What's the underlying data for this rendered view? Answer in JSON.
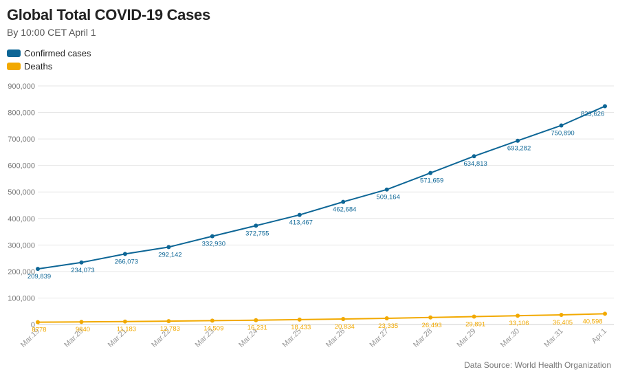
{
  "header": {
    "title": "Global Total COVID-19 Cases",
    "subtitle": "By 10:00 CET April 1"
  },
  "source": "Data Source: World Health Organization",
  "colors": {
    "confirmed": "#0d6696",
    "deaths": "#f2a900",
    "grid": "#e6e6e6"
  },
  "chart_data": {
    "type": "line",
    "title": "Global Total COVID-19 Cases",
    "subtitle": "By 10:00 CET April 1",
    "categories": [
      "Mar.19",
      "Mar.20",
      "Mar.21",
      "Mar.22",
      "Mar.23",
      "Mar.24",
      "Mar.25",
      "Mar.26",
      "Mar.27",
      "Mar.28",
      "Mar.29",
      "Mar.30",
      "Mar.31",
      "Apr.1"
    ],
    "y_ticks": [
      "0",
      "100,000",
      "200,000",
      "300,000",
      "400,000",
      "500,000",
      "600,000",
      "700,000",
      "800,000",
      "900,000"
    ],
    "ylim": [
      0,
      900000
    ],
    "grid": true,
    "legend_position": "top-left",
    "series": [
      {
        "name": "Confirmed cases",
        "values": [
          209839,
          234073,
          266073,
          292142,
          332930,
          372755,
          413467,
          462684,
          509164,
          571659,
          634813,
          693282,
          750890,
          823626
        ],
        "labels": [
          "209,839",
          "234,073",
          "266,073",
          "292,142",
          "332,930",
          "372,755",
          "413,467",
          "462,684",
          "509,164",
          "571,659",
          "634,813",
          "693,282",
          "750,890",
          "823,626"
        ]
      },
      {
        "name": "Deaths",
        "values": [
          8778,
          9840,
          11183,
          12783,
          14509,
          16231,
          18433,
          20834,
          23335,
          26493,
          29891,
          33106,
          36405,
          40598
        ],
        "labels": [
          "8778",
          "9840",
          "11,183",
          "12,783",
          "14,509",
          "16,231",
          "18,433",
          "20,834",
          "23,335",
          "26,493",
          "29,891",
          "33,106",
          "36,405",
          "40,598"
        ]
      }
    ]
  }
}
